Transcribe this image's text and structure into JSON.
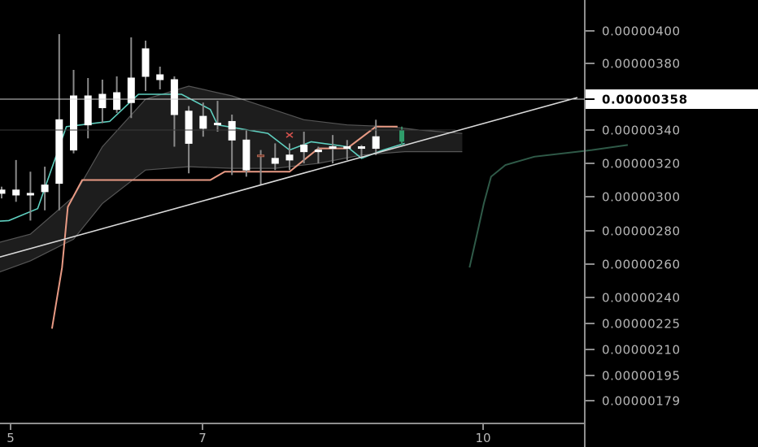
{
  "chart_data": {
    "type": "candlestick",
    "title": "",
    "xlabel": "",
    "ylabel": "",
    "x_ticks": [
      "5",
      "7",
      "10"
    ],
    "y_ticks": [
      "0.00000400",
      "0.00000380",
      "0.00000340",
      "0.00000320",
      "0.00000300",
      "0.00000280",
      "0.00000260",
      "0.00000240",
      "0.00000225",
      "0.00000210",
      "0.00000195",
      "0.00000179"
    ],
    "current_price": "0.00000358",
    "ylim": [
      1.75e-06,
      4.1e-06
    ],
    "grid": false,
    "colors": {
      "background": "#000000",
      "candle_up": "#ffffff",
      "candle_down": "#ffffff",
      "wick": "#8a8a8a",
      "conversion_line": "#5fd0c0",
      "base_line": "#e89a84",
      "cloud": "#404040",
      "lagging_line": "#2f5a48",
      "trendline": "#d9d9d9",
      "price_tag_bg": "#ffffff"
    },
    "candles": [
      {
        "t": 0,
        "o": 3.04e-06,
        "h": 3.06e-06,
        "l": 2.99e-06,
        "c": 3.02e-06
      },
      {
        "t": 1,
        "o": 3.04e-06,
        "h": 3.22e-06,
        "l": 2.97e-06,
        "c": 3.01e-06
      },
      {
        "t": 2,
        "o": 3.02e-06,
        "h": 3.15e-06,
        "l": 2.86e-06,
        "c": 3.01e-06
      },
      {
        "t": 3,
        "o": 3.03e-06,
        "h": 3.18e-06,
        "l": 2.92e-06,
        "c": 3.07e-06
      },
      {
        "t": 4,
        "o": 3.08e-06,
        "h": 3.98e-06,
        "l": 2.92e-06,
        "c": 3.46e-06
      },
      {
        "t": 5,
        "o": 3.28e-06,
        "h": 3.76e-06,
        "l": 3.26e-06,
        "c": 3.6e-06
      },
      {
        "t": 6,
        "o": 3.6e-06,
        "h": 3.71e-06,
        "l": 3.35e-06,
        "c": 3.43e-06
      },
      {
        "t": 7,
        "o": 3.53e-06,
        "h": 3.7e-06,
        "l": 3.44e-06,
        "c": 3.61e-06
      },
      {
        "t": 8,
        "o": 3.62e-06,
        "h": 3.72e-06,
        "l": 3.5e-06,
        "c": 3.52e-06
      },
      {
        "t": 9,
        "o": 3.56e-06,
        "h": 3.96e-06,
        "l": 3.47e-06,
        "c": 3.71e-06
      },
      {
        "t": 10,
        "o": 3.72e-06,
        "h": 3.94e-06,
        "l": 3.63e-06,
        "c": 3.89e-06
      },
      {
        "t": 11,
        "o": 3.7e-06,
        "h": 3.78e-06,
        "l": 3.64e-06,
        "c": 3.73e-06
      },
      {
        "t": 12,
        "o": 3.7e-06,
        "h": 3.72e-06,
        "l": 3.3e-06,
        "c": 3.49e-06
      },
      {
        "t": 13,
        "o": 3.51e-06,
        "h": 3.54e-06,
        "l": 3.14e-06,
        "c": 3.32e-06
      },
      {
        "t": 14,
        "o": 3.48e-06,
        "h": 3.56e-06,
        "l": 3.36e-06,
        "c": 3.41e-06
      },
      {
        "t": 15,
        "o": 3.44e-06,
        "h": 3.57e-06,
        "l": 3.39e-06,
        "c": 3.44e-06
      },
      {
        "t": 16,
        "o": 3.45e-06,
        "h": 3.49e-06,
        "l": 3.13e-06,
        "c": 3.34e-06
      },
      {
        "t": 17,
        "o": 3.34e-06,
        "h": 3.4e-06,
        "l": 3.12e-06,
        "c": 3.16e-06
      },
      {
        "t": 18,
        "o": 3.25e-06,
        "h": 3.28e-06,
        "l": 3.07e-06,
        "c": 3.25e-06
      },
      {
        "t": 19,
        "o": 3.23e-06,
        "h": 3.32e-06,
        "l": 3.16e-06,
        "c": 3.2e-06
      },
      {
        "t": 20,
        "o": 3.22e-06,
        "h": 3.32e-06,
        "l": 3.16e-06,
        "c": 3.25e-06
      },
      {
        "t": 21,
        "o": 3.27e-06,
        "h": 3.39e-06,
        "l": 3.2e-06,
        "c": 3.31e-06
      },
      {
        "t": 22,
        "o": 3.27e-06,
        "h": 3.3e-06,
        "l": 3.2e-06,
        "c": 3.28e-06
      },
      {
        "t": 23,
        "o": 3.3e-06,
        "h": 3.37e-06,
        "l": 3.2e-06,
        "c": 3.3e-06
      },
      {
        "t": 24,
        "o": 3.3e-06,
        "h": 3.34e-06,
        "l": 3.22e-06,
        "c": 3.29e-06
      },
      {
        "t": 25,
        "o": 3.29e-06,
        "h": 3.31e-06,
        "l": 3.24e-06,
        "c": 3.3e-06
      },
      {
        "t": 26,
        "o": 3.29e-06,
        "h": 3.46e-06,
        "l": 3.25e-06,
        "c": 3.36e-06
      }
    ],
    "last_candle": {
      "o": 3.33e-06,
      "h": 3.42e-06,
      "l": 3.3e-06,
      "c": 3.4e-06
    },
    "conversion_line": [
      [
        -1.5,
        2.85e-06
      ],
      [
        0.5,
        2.86e-06
      ],
      [
        2.5,
        2.93e-06
      ],
      [
        4.5,
        3.42e-06
      ],
      [
        7.5,
        3.45e-06
      ],
      [
        9.5,
        3.61e-06
      ],
      [
        12.5,
        3.61e-06
      ],
      [
        14.5,
        3.52e-06
      ],
      [
        15,
        3.43e-06
      ],
      [
        18.5,
        3.38e-06
      ],
      [
        20,
        3.28e-06
      ],
      [
        21.5,
        3.33e-06
      ],
      [
        24,
        3.3e-06
      ],
      [
        25,
        3.23e-06
      ],
      [
        26.5,
        3.28e-06
      ],
      [
        28,
        3.32e-06
      ]
    ],
    "base_line": [
      [
        3.5,
        2.22e-06
      ],
      [
        4.2,
        2.58e-06
      ],
      [
        4.6,
        2.94e-06
      ],
      [
        5.6,
        3.1e-06
      ],
      [
        14.5,
        3.1e-06
      ],
      [
        15.5,
        3.15e-06
      ],
      [
        20,
        3.15e-06
      ],
      [
        22,
        3.29e-06
      ],
      [
        24,
        3.29e-06
      ],
      [
        26,
        3.42e-06
      ],
      [
        27.5,
        3.42e-06
      ]
    ],
    "cloud_upper": [
      [
        -1.5,
        2.7e-06
      ],
      [
        2,
        2.78e-06
      ],
      [
        5,
        3e-06
      ],
      [
        7,
        3.3e-06
      ],
      [
        10,
        3.58e-06
      ],
      [
        13,
        3.66e-06
      ],
      [
        16,
        3.6e-06
      ],
      [
        21,
        3.46e-06
      ],
      [
        24,
        3.43e-06
      ],
      [
        27,
        3.42e-06
      ],
      [
        29,
        3.4e-06
      ],
      [
        32,
        3.38e-06
      ]
    ],
    "cloud_lower": [
      [
        -1.5,
        2.51e-06
      ],
      [
        2,
        2.62e-06
      ],
      [
        5,
        2.75e-06
      ],
      [
        7,
        2.96e-06
      ],
      [
        10,
        3.16e-06
      ],
      [
        13,
        3.18e-06
      ],
      [
        16,
        3.17e-06
      ],
      [
        19,
        3.17e-06
      ],
      [
        22,
        3.2e-06
      ],
      [
        25,
        3.25e-06
      ],
      [
        28,
        3.27e-06
      ],
      [
        32,
        3.27e-06
      ]
    ],
    "lagging_line": [
      [
        32.5,
        2.58e-06
      ],
      [
        33,
        2.77e-06
      ],
      [
        33.5,
        2.96e-06
      ],
      [
        34,
        3.12e-06
      ],
      [
        35,
        3.19e-06
      ],
      [
        37,
        3.24e-06
      ],
      [
        41,
        3.28e-06
      ],
      [
        43.5,
        3.31e-06
      ]
    ],
    "trendline": [
      [
        -1.5,
        2.61e-06
      ],
      [
        40,
        3.59e-06
      ]
    ],
    "marker_x": {
      "t": 20,
      "y": 3.37e-06
    }
  }
}
